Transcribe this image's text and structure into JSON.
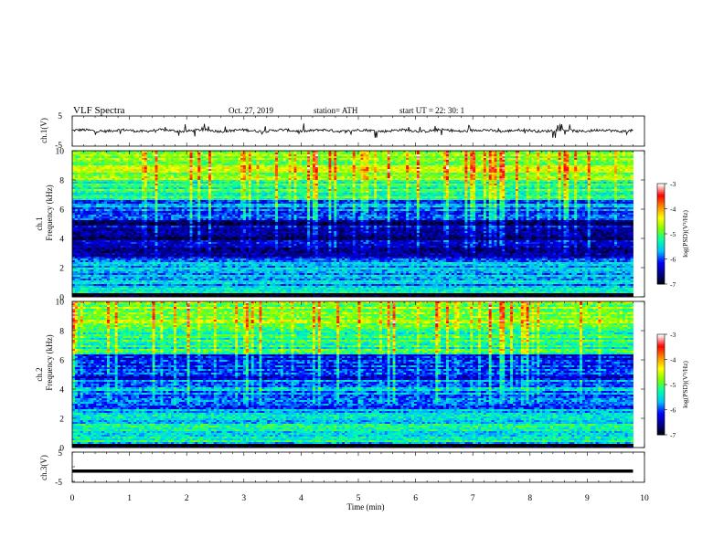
{
  "header": {
    "title": "VLF  Spectra",
    "date": "Oct. 27, 2019",
    "station": "station= ATH",
    "start": "start  UT  =    22: 30: 1"
  },
  "chart_data": [
    {
      "type": "line",
      "panel": "ch1-waveform",
      "ylabel": "ch.1(V)",
      "xlim": [
        0,
        10
      ],
      "ylim": [
        -5,
        5
      ],
      "yticks": [
        "5",
        "-5"
      ],
      "x_end": 9.8,
      "description_series": "noisy trace near 0 V with spikes",
      "baseline": 0
    },
    {
      "type": "heatmap",
      "panel": "ch1-spectrogram",
      "ylabel_lines": [
        "ch.1",
        "Frequency  (kHz)"
      ],
      "xlim": [
        0,
        10
      ],
      "ylim": [
        0,
        10
      ],
      "yticks": [
        "0",
        "2",
        "4",
        "6",
        "8",
        "10"
      ],
      "x_end": 9.8,
      "colorbar": {
        "label": "log(PSD)(V²/Hz)",
        "range": [
          -7,
          -3
        ],
        "ticks": [
          "-3",
          "-4",
          "-5",
          "-6",
          "-7"
        ],
        "colormap": [
          "#000000",
          "#00008b",
          "#0000ff",
          "#00bfff",
          "#00ffaa",
          "#7fff00",
          "#ffff00",
          "#ff8c00",
          "#ff0000",
          "#ffffff"
        ]
      },
      "bands": [
        {
          "from": 0,
          "to": 0.3,
          "level": -7
        },
        {
          "from": 0.3,
          "to": 2.6,
          "level": -5.6
        },
        {
          "from": 2.6,
          "to": 5.2,
          "level": -6.5
        },
        {
          "from": 5.2,
          "to": 6.6,
          "level": -5.9
        },
        {
          "from": 6.6,
          "to": 8.0,
          "level": -5.1
        },
        {
          "from": 8.0,
          "to": 10.0,
          "level": -4.7
        }
      ]
    },
    {
      "type": "heatmap",
      "panel": "ch2-spectrogram",
      "ylabel_lines": [
        "ch.2",
        "Frequency  (kHz)"
      ],
      "xlim": [
        0,
        10
      ],
      "ylim": [
        0,
        10
      ],
      "yticks": [
        "0",
        "2",
        "4",
        "6",
        "8",
        "10"
      ],
      "x_end": 9.8,
      "colorbar": {
        "label": "log(PSD)(V²/Hz)",
        "range": [
          -7,
          -3
        ],
        "ticks": [
          "-3",
          "-4",
          "-5",
          "-6",
          "-7"
        ]
      },
      "bands": [
        {
          "from": 0,
          "to": 0.3,
          "level": -7
        },
        {
          "from": 0.3,
          "to": 2.4,
          "level": -5.4
        },
        {
          "from": 2.4,
          "to": 4.6,
          "level": -5.8
        },
        {
          "from": 4.6,
          "to": 6.4,
          "level": -6.1
        },
        {
          "from": 6.4,
          "to": 8.0,
          "level": -5.2
        },
        {
          "from": 8.0,
          "to": 10.0,
          "level": -4.8
        }
      ]
    },
    {
      "type": "line",
      "panel": "ch3-waveform",
      "ylabel": "ch.3(V)",
      "xlim": [
        0,
        10
      ],
      "ylim": [
        -5,
        5
      ],
      "yticks": [
        "5",
        "-5"
      ],
      "x_end": 9.8,
      "baseline": -1.5
    }
  ],
  "xaxis": {
    "label": "Time  (min)",
    "ticks": [
      "0",
      "1",
      "2",
      "3",
      "4",
      "5",
      "6",
      "7",
      "8",
      "9",
      "10"
    ]
  }
}
